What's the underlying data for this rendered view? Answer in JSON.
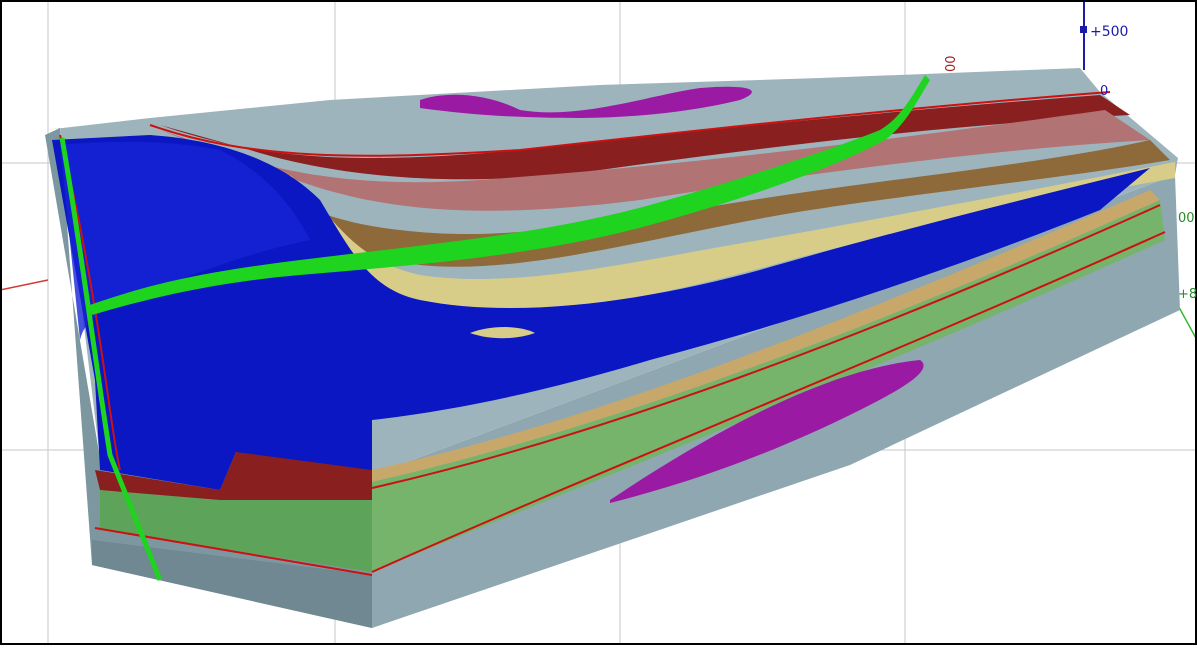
{
  "view": {
    "type": "3d-geological-block-model",
    "background": "#ffffff",
    "frame_color": "#000000"
  },
  "axis_labels": {
    "z_top": "+500",
    "red_axis_tick": "00",
    "red_axis_tick_2": "0",
    "green_axis_tick": "00",
    "green_axis_tick_2": "+8"
  },
  "colors": {
    "block_side": "#8fa7b0",
    "block_top": "#9eb4bc",
    "blue_unit": "#0a17c2",
    "tan_unit": "#d7cd88",
    "brown_unit": "#8e6a3b",
    "pink_unit": "#b27374",
    "dark_red_unit": "#8a1f1f",
    "green_unit": "#76b36b",
    "fault": "#1ed41e",
    "lens": "#9b1aa3",
    "contact_line": "#cc1111",
    "axis_blue": "#1b1baa",
    "axis_red": "#d23a3a",
    "axis_green": "#35b835"
  }
}
